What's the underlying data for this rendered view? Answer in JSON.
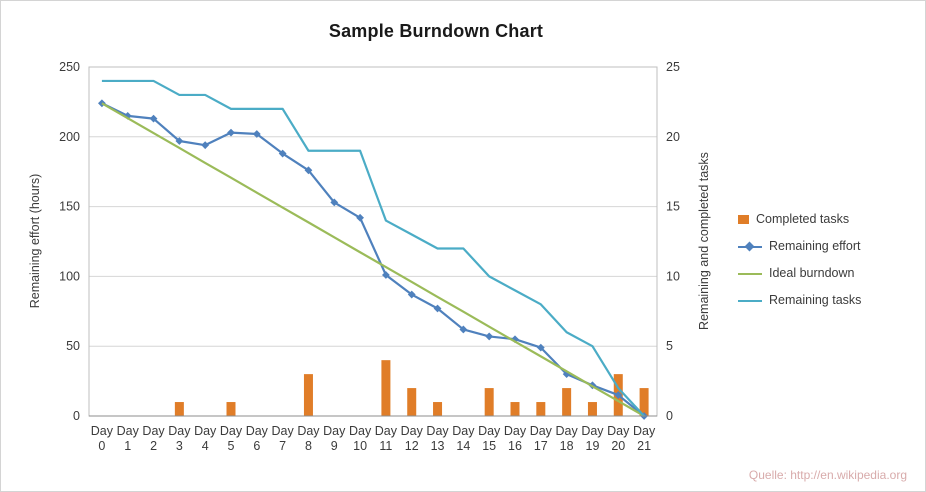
{
  "figure": {
    "title": "Sample Burndown Chart"
  },
  "footer": {
    "source_note": "Quelle: http://en.wikipedia.org"
  },
  "chart_data": {
    "type": "combo",
    "title": "Sample Burndown Chart",
    "category_prefix": "Day",
    "categories": [
      0,
      1,
      2,
      3,
      4,
      5,
      6,
      7,
      8,
      9,
      10,
      11,
      12,
      13,
      14,
      15,
      16,
      17,
      18,
      19,
      20,
      21
    ],
    "left_axis": {
      "label": "Remaining effort (hours)",
      "min": 0,
      "max": 250,
      "ticks": [
        0,
        50,
        100,
        150,
        200,
        250
      ]
    },
    "right_axis": {
      "label": "Remaining and completed tasks",
      "min": 0,
      "max": 25,
      "ticks": [
        0,
        5,
        10,
        15,
        20,
        25
      ]
    },
    "legend_position": "right",
    "grid": true,
    "series": [
      {
        "name": "Completed tasks",
        "type": "bar",
        "axis": "right",
        "color": "#E07D28",
        "values": [
          0,
          0,
          0,
          1,
          0,
          1,
          0,
          0,
          3,
          0,
          0,
          4,
          2,
          1,
          0,
          2,
          1,
          1,
          2,
          1,
          3,
          2
        ]
      },
      {
        "name": "Remaining effort",
        "type": "line",
        "marker": "diamond",
        "axis": "left",
        "color": "#4F81BD",
        "values": [
          224,
          215,
          213,
          197,
          194,
          203,
          202,
          188,
          176,
          153,
          142,
          101,
          87,
          77,
          62,
          57,
          55,
          49,
          30,
          22,
          15,
          0
        ]
      },
      {
        "name": "Ideal burndown",
        "type": "line",
        "axis": "left",
        "color": "#9BBB59",
        "values": [
          224,
          213.3,
          202.7,
          192,
          181.3,
          170.7,
          160,
          149.3,
          138.7,
          128,
          117.3,
          106.7,
          96,
          85.3,
          74.7,
          64,
          53.3,
          42.7,
          32,
          21.3,
          10.7,
          0
        ]
      },
      {
        "name": "Remaining tasks",
        "type": "line",
        "axis": "right",
        "color": "#4BACC6",
        "values": [
          24,
          24,
          24,
          23,
          23,
          22,
          22,
          22,
          19,
          19,
          19,
          14,
          13,
          12,
          12,
          10,
          9,
          8,
          6,
          5,
          2,
          0
        ]
      }
    ],
    "style": {
      "grid_color": "#D6D6D6",
      "frame_color": "#BFBFBF",
      "axis_line_color": "#8E8E8E",
      "text_color": "#3B3B3B",
      "title_color": "#1A1A1A",
      "source_note_color": "#D8ABAB"
    }
  }
}
